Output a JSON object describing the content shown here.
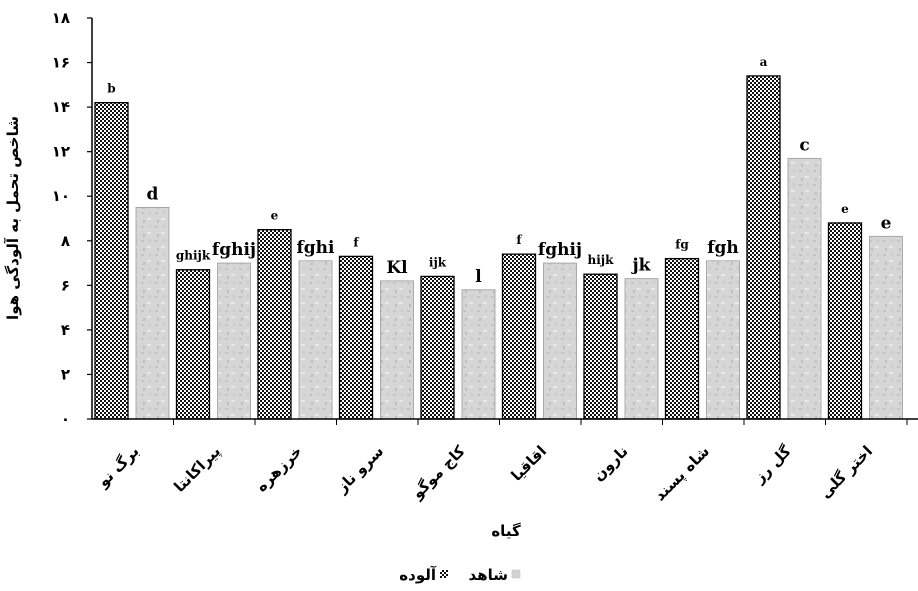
{
  "chart_data": {
    "type": "bar",
    "xlabel": "گیاه",
    "ylabel": "شاخص تحمل به آلودگی هوا",
    "ylim": [
      0,
      18
    ],
    "yticks": [
      "۰",
      "۲",
      "۴",
      "۶",
      "۸",
      "۱۰",
      "۱۲",
      "۱۴",
      "۱۶",
      "۱۸"
    ],
    "ytick_values": [
      0,
      2,
      4,
      6,
      8,
      10,
      12,
      14,
      16,
      18
    ],
    "categories": [
      "برگ نو",
      "پیراکانتا",
      "خرزهره",
      "سرو ناز",
      "کاج موگو",
      "اقاقیا",
      "نارون",
      "شاه پسند",
      "گل رز",
      "اختر گلی"
    ],
    "series": [
      {
        "name": "آلوده",
        "color": "#1a1a1a",
        "values": [
          14.2,
          6.7,
          8.5,
          7.3,
          6.4,
          7.4,
          6.5,
          7.2,
          15.4,
          8.8
        ],
        "letters": [
          "b",
          "ghijk",
          "e",
          "f",
          "ijk",
          "f",
          "hijk",
          "fg",
          "a",
          "e"
        ]
      },
      {
        "name": "شاهد",
        "color": "#d9d9d9",
        "values": [
          9.5,
          7.0,
          7.1,
          6.2,
          5.8,
          7.0,
          6.3,
          7.1,
          11.7,
          8.2
        ],
        "letters": [
          "d",
          "fghij",
          "fghi",
          "Kl",
          "l",
          "fghij",
          "jk",
          "fgh",
          "c",
          "e"
        ]
      }
    ],
    "legend_position": "bottom",
    "grid": false
  }
}
